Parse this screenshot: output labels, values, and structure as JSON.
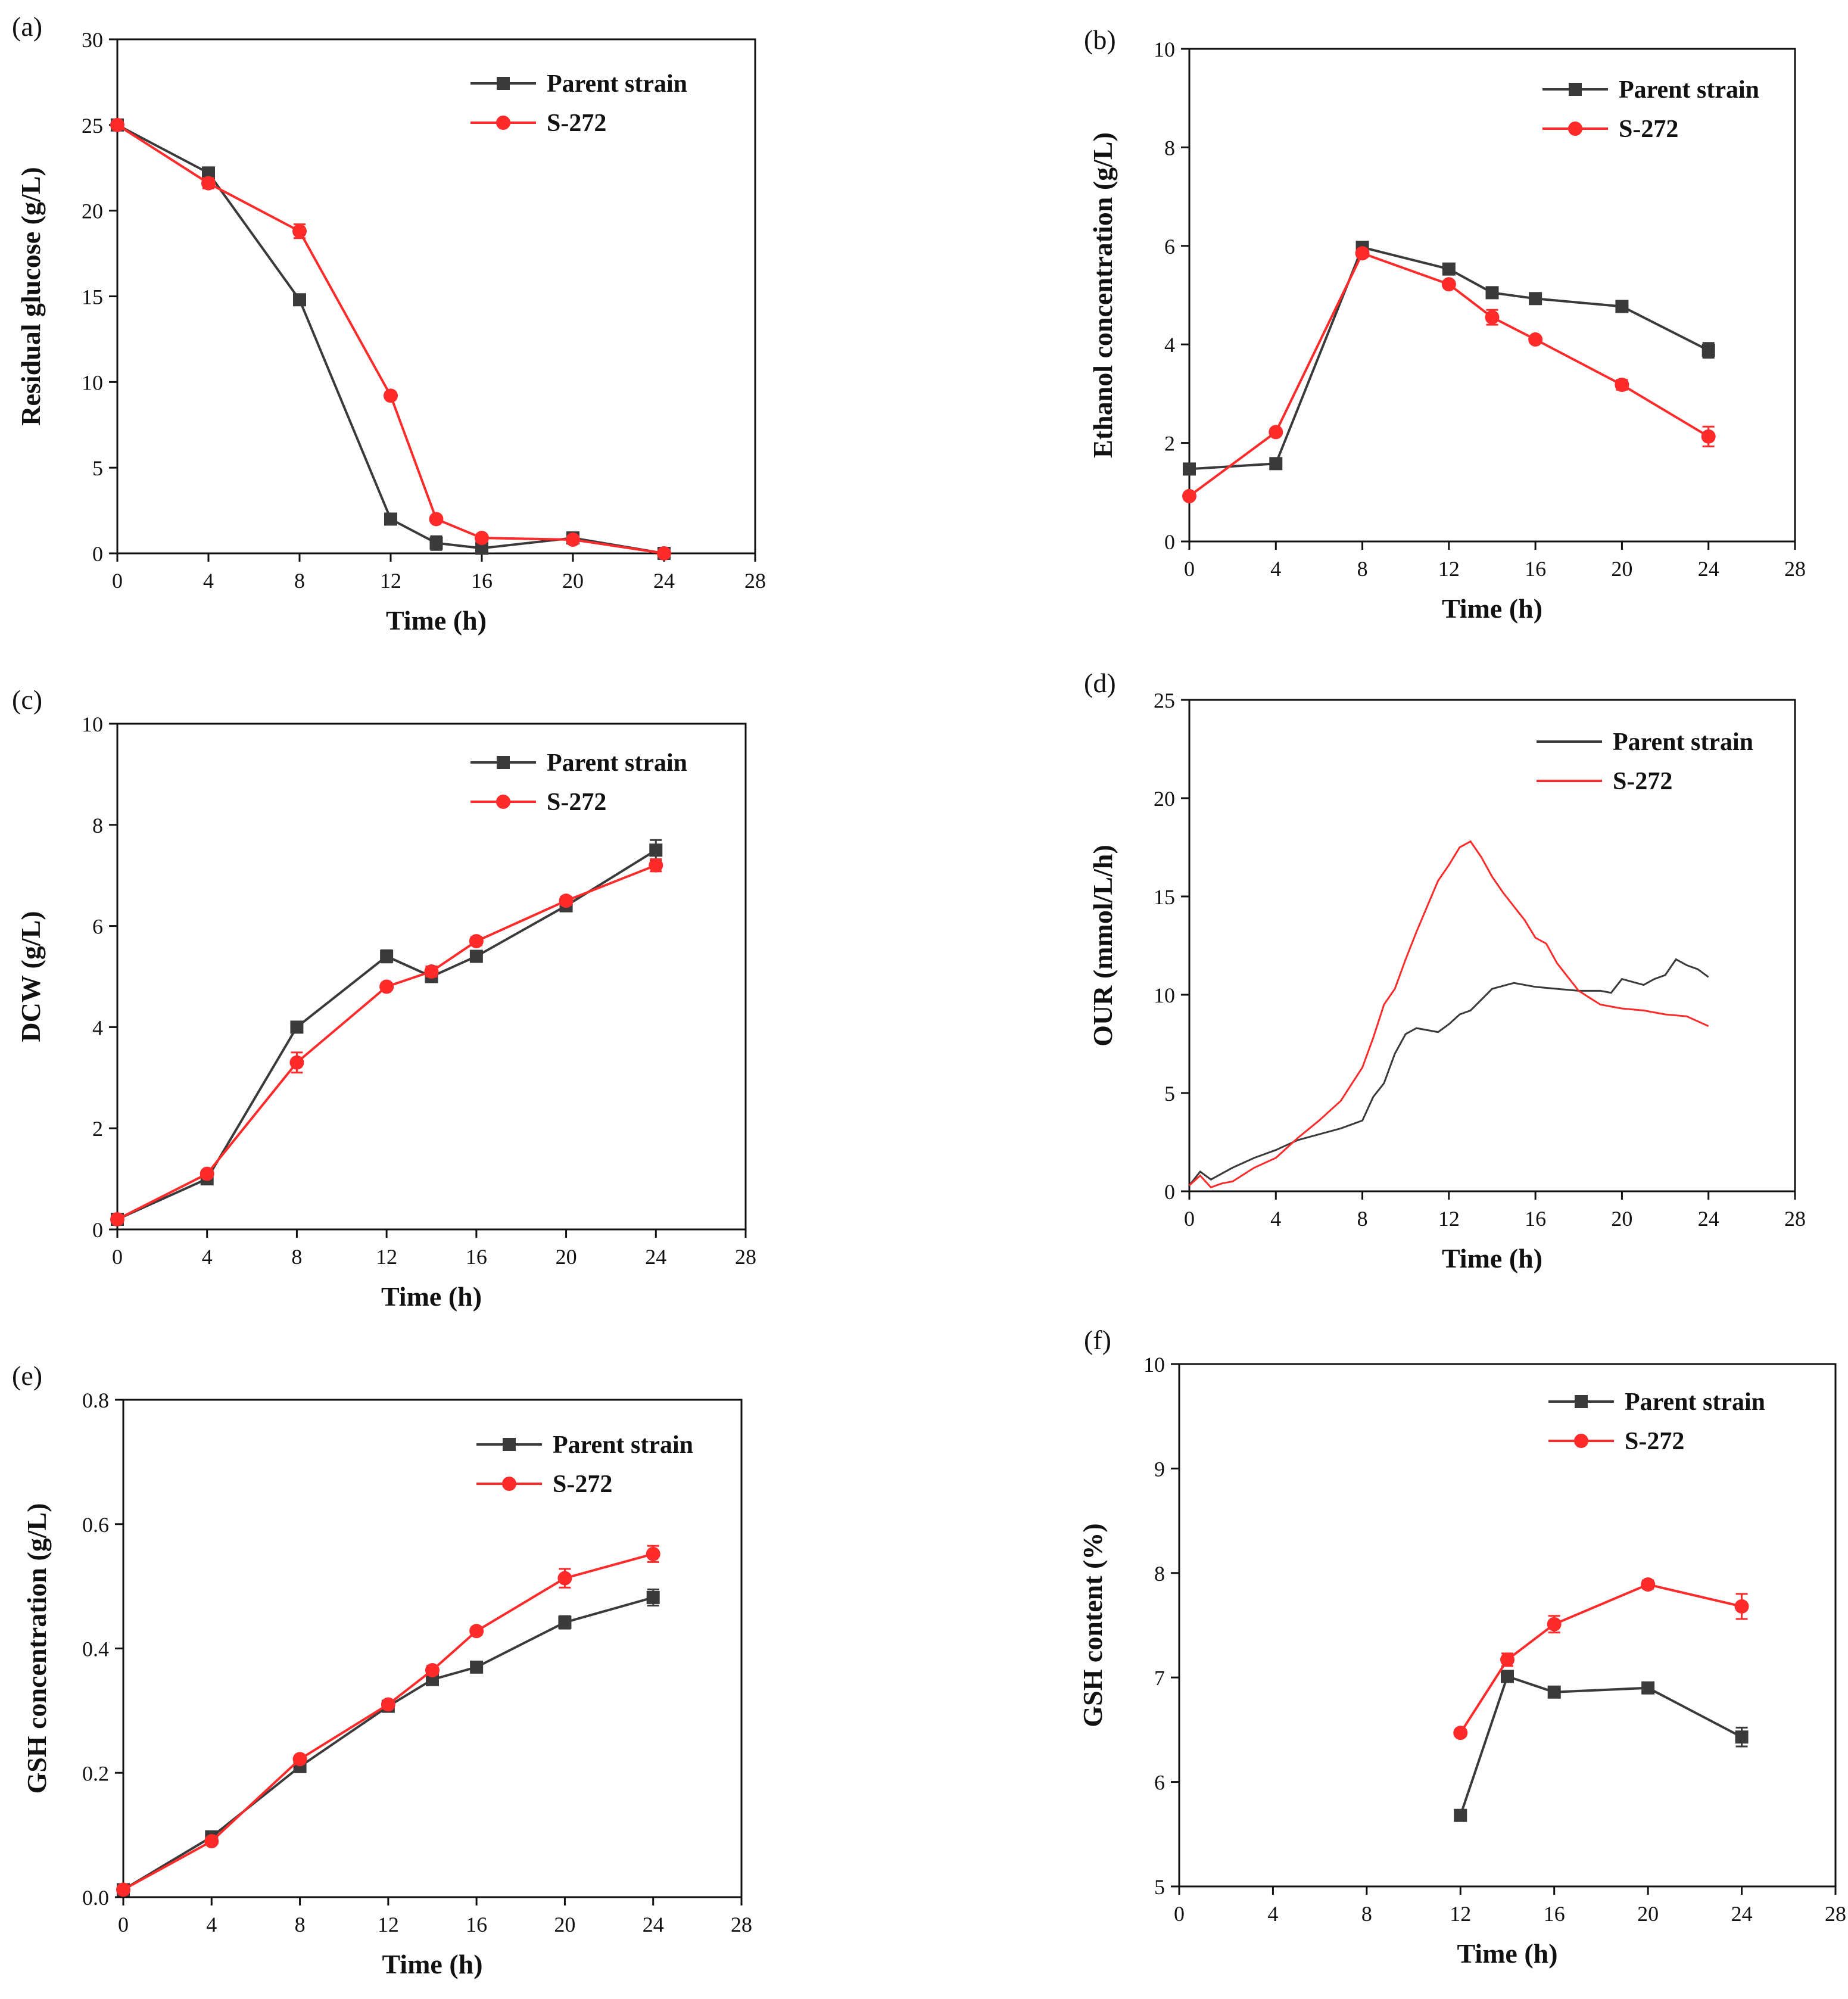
{
  "figure": {
    "series_names": [
      "Parent strain",
      "S-272"
    ],
    "colors": {
      "parent": "#3a3a3a",
      "s272": "#ff2a2a",
      "axis": "#111111"
    }
  },
  "chart_data": [
    {
      "id": "a",
      "panel_label": "(a)",
      "type": "line",
      "xlabel": "Time (h)",
      "ylabel": "Residual glucose (g/L)",
      "xlim": [
        0,
        28
      ],
      "ylim": [
        0,
        30
      ],
      "xticks": [
        0,
        4,
        8,
        12,
        16,
        20,
        24,
        28
      ],
      "yticks": [
        0,
        5,
        10,
        15,
        20,
        25,
        30
      ],
      "legend": "top-right",
      "series": [
        {
          "name": "Parent strain",
          "color": "#3a3a3a",
          "marker": "square",
          "x": [
            0,
            4,
            8,
            12,
            14,
            16,
            20,
            24
          ],
          "y": [
            25.0,
            22.2,
            14.8,
            2.0,
            0.6,
            0.3,
            0.9,
            0.0
          ],
          "err": [
            0.2,
            0.3,
            0.3,
            0.2,
            0.4,
            0.2,
            0.2,
            0.1
          ]
        },
        {
          "name": "S-272",
          "color": "#ff2a2a",
          "marker": "circle",
          "x": [
            0,
            4,
            8,
            12,
            14,
            16,
            20,
            24
          ],
          "y": [
            25.0,
            21.6,
            18.8,
            9.2,
            2.0,
            0.9,
            0.8,
            0.0
          ],
          "err": [
            0.2,
            0.3,
            0.4,
            0.2,
            0.2,
            0.2,
            0.2,
            0.1
          ]
        }
      ]
    },
    {
      "id": "b",
      "panel_label": "(b)",
      "type": "line",
      "xlabel": "Time (h)",
      "ylabel": "Ethanol concentration (g/L)",
      "xlim": [
        0,
        28
      ],
      "ylim": [
        0,
        10
      ],
      "xticks": [
        0,
        4,
        8,
        12,
        16,
        20,
        24,
        28
      ],
      "yticks": [
        0,
        2,
        4,
        6,
        8,
        10
      ],
      "legend": "top-right",
      "series": [
        {
          "name": "Parent strain",
          "color": "#3a3a3a",
          "marker": "square",
          "x": [
            0,
            4,
            8,
            12,
            14,
            16,
            20,
            24
          ],
          "y": [
            1.47,
            1.58,
            5.97,
            5.53,
            5.05,
            4.93,
            4.77,
            3.88
          ],
          "err": [
            0.05,
            0.05,
            0.08,
            0.07,
            0.06,
            0.05,
            0.06,
            0.15
          ]
        },
        {
          "name": "S-272",
          "color": "#ff2a2a",
          "marker": "circle",
          "x": [
            0,
            4,
            8,
            12,
            14,
            16,
            20,
            24
          ],
          "y": [
            0.92,
            2.22,
            5.85,
            5.22,
            4.55,
            4.1,
            3.18,
            2.13
          ],
          "err": [
            0.05,
            0.06,
            0.08,
            0.07,
            0.15,
            0.06,
            0.1,
            0.2
          ]
        }
      ]
    },
    {
      "id": "c",
      "panel_label": "(c)",
      "type": "line",
      "xlabel": "Time (h)",
      "ylabel": "DCW (g/L)",
      "xlim": [
        0,
        28
      ],
      "ylim": [
        0,
        10
      ],
      "xticks": [
        0,
        4,
        8,
        12,
        16,
        20,
        24,
        28
      ],
      "yticks": [
        0,
        2,
        4,
        6,
        8,
        10
      ],
      "legend": "top-right",
      "series": [
        {
          "name": "Parent strain",
          "color": "#3a3a3a",
          "marker": "square",
          "x": [
            0,
            4,
            8,
            12,
            14,
            16,
            20,
            24
          ],
          "y": [
            0.2,
            1.0,
            4.0,
            5.4,
            5.0,
            5.4,
            6.4,
            7.5
          ],
          "err": [
            0.05,
            0.05,
            0.08,
            0.12,
            0.1,
            0.08,
            0.08,
            0.2
          ]
        },
        {
          "name": "S-272",
          "color": "#ff2a2a",
          "marker": "circle",
          "x": [
            0,
            4,
            8,
            12,
            14,
            16,
            20,
            24
          ],
          "y": [
            0.2,
            1.1,
            3.3,
            4.8,
            5.1,
            5.7,
            6.5,
            7.2
          ],
          "err": [
            0.05,
            0.06,
            0.2,
            0.07,
            0.1,
            0.08,
            0.08,
            0.12
          ]
        }
      ]
    },
    {
      "id": "d",
      "panel_label": "(d)",
      "type": "line",
      "xlabel": "Time (h)",
      "ylabel": "OUR (mmol/L/h)",
      "xlim": [
        0,
        28
      ],
      "ylim": [
        0,
        25
      ],
      "xticks": [
        0,
        4,
        8,
        12,
        16,
        20,
        24,
        28
      ],
      "yticks": [
        0,
        5,
        10,
        15,
        20,
        25
      ],
      "legend": "top-right",
      "series": [
        {
          "name": "Parent strain",
          "color": "#3a3a3a",
          "marker": "none",
          "x": [
            0,
            0.5,
            1,
            2,
            3,
            4,
            5,
            6,
            7,
            7.5,
            8,
            8.5,
            9,
            9.5,
            10,
            10.5,
            11,
            11.5,
            12,
            12.5,
            13,
            14,
            15,
            16,
            17,
            18,
            19,
            19.5,
            20,
            21,
            21.5,
            22,
            22.5,
            23,
            23.5,
            24
          ],
          "y": [
            0.3,
            1.0,
            0.6,
            1.2,
            1.7,
            2.1,
            2.6,
            2.9,
            3.2,
            3.4,
            3.6,
            4.8,
            5.5,
            7.0,
            8.0,
            8.3,
            8.2,
            8.1,
            8.5,
            9.0,
            9.2,
            10.3,
            10.6,
            10.4,
            10.3,
            10.2,
            10.2,
            10.1,
            10.8,
            10.5,
            10.8,
            11.0,
            11.8,
            11.5,
            11.3,
            10.9
          ]
        },
        {
          "name": "S-272",
          "color": "#ff2a2a",
          "marker": "none",
          "x": [
            0,
            0.5,
            1,
            1.5,
            2,
            3,
            4,
            5,
            6,
            7,
            8,
            8.5,
            9,
            9.5,
            10,
            10.5,
            11,
            11.5,
            12,
            12.5,
            13,
            13.5,
            14,
            14.5,
            15,
            15.5,
            16,
            16.5,
            17,
            18,
            19,
            20,
            21,
            22,
            23,
            24
          ],
          "y": [
            0.3,
            0.8,
            0.2,
            0.4,
            0.5,
            1.2,
            1.7,
            2.7,
            3.6,
            4.6,
            6.3,
            7.8,
            9.5,
            10.3,
            11.8,
            13.2,
            14.5,
            15.8,
            16.6,
            17.5,
            17.8,
            17.0,
            16.0,
            15.2,
            14.5,
            13.8,
            12.9,
            12.6,
            11.6,
            10.2,
            9.5,
            9.3,
            9.2,
            9.0,
            8.9,
            8.4
          ]
        }
      ]
    },
    {
      "id": "e",
      "panel_label": "(e)",
      "type": "line",
      "xlabel": "Time (h)",
      "ylabel": "GSH concentration (g/L)",
      "xlim": [
        0,
        28
      ],
      "ylim": [
        0,
        0.8
      ],
      "xticks": [
        0,
        4,
        8,
        12,
        16,
        20,
        24,
        28
      ],
      "yticks": [
        0.0,
        0.2,
        0.4,
        0.6,
        0.8
      ],
      "ytick_labels": [
        "0.0",
        "0.2",
        "0.4",
        "0.6",
        "0.8"
      ],
      "legend": "top-right",
      "series": [
        {
          "name": "Parent strain",
          "color": "#3a3a3a",
          "marker": "square",
          "x": [
            0,
            4,
            8,
            12,
            14,
            16,
            20,
            24
          ],
          "y": [
            0.012,
            0.097,
            0.21,
            0.307,
            0.35,
            0.37,
            0.442,
            0.482
          ],
          "err": [
            0.003,
            0.004,
            0.005,
            0.006,
            0.006,
            0.006,
            0.01,
            0.013
          ]
        },
        {
          "name": "S-272",
          "color": "#ff2a2a",
          "marker": "circle",
          "x": [
            0,
            4,
            8,
            12,
            14,
            16,
            20,
            24
          ],
          "y": [
            0.012,
            0.09,
            0.222,
            0.31,
            0.365,
            0.428,
            0.513,
            0.552
          ],
          "err": [
            0.003,
            0.004,
            0.005,
            0.006,
            0.007,
            0.006,
            0.015,
            0.013
          ]
        }
      ]
    },
    {
      "id": "f",
      "panel_label": "(f)",
      "type": "line",
      "xlabel": "Time (h)",
      "ylabel": "GSH content (%)",
      "xlim": [
        0,
        28
      ],
      "ylim": [
        5,
        10
      ],
      "xticks": [
        0,
        4,
        8,
        12,
        16,
        20,
        24,
        28
      ],
      "yticks": [
        5,
        6,
        7,
        8,
        9,
        10
      ],
      "legend": "top-right",
      "series": [
        {
          "name": "Parent strain",
          "color": "#3a3a3a",
          "marker": "square",
          "x": [
            12,
            14,
            16,
            20,
            24
          ],
          "y": [
            5.68,
            7.01,
            6.86,
            6.9,
            6.43
          ],
          "err": [
            0.03,
            0.05,
            0.04,
            0.05,
            0.09
          ]
        },
        {
          "name": "S-272",
          "color": "#ff2a2a",
          "marker": "circle",
          "x": [
            12,
            14,
            16,
            20,
            24
          ],
          "y": [
            6.47,
            7.17,
            7.51,
            7.89,
            7.68
          ],
          "err": [
            0.03,
            0.06,
            0.08,
            0.04,
            0.12
          ]
        }
      ]
    }
  ]
}
